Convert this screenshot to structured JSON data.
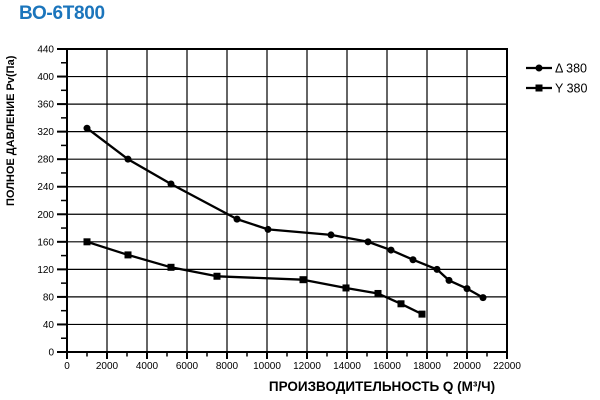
{
  "page_title": "ВО-6Т800",
  "colors": {
    "title": "#1b75bc",
    "chart_ink": "#000000",
    "background": "#ffffff"
  },
  "chart_data": {
    "type": "line",
    "title": "",
    "xlabel": "ПРОИЗВОДИТЕЛЬНОСТЬ Q (М³/Ч)",
    "ylabel": "ПОЛНОЕ ДАВЛЕНИЕ Pv(Па)",
    "xlim": [
      0,
      22000
    ],
    "ylim": [
      0,
      440
    ],
    "x_tick_step": 2000,
    "x_minor_step": 1000,
    "y_tick_step": 40,
    "y_minor_step": 20,
    "grid": true,
    "legend_position": "top-right",
    "series": [
      {
        "name": "Δ 380",
        "marker": "circle",
        "points": [
          [
            1000,
            325
          ],
          [
            3050,
            280
          ],
          [
            5200,
            244
          ],
          [
            8500,
            193
          ],
          [
            10050,
            178
          ],
          [
            13200,
            170
          ],
          [
            15050,
            160
          ],
          [
            16200,
            148
          ],
          [
            17300,
            134
          ],
          [
            18500,
            120
          ],
          [
            19100,
            104
          ],
          [
            20000,
            92
          ],
          [
            20800,
            79
          ]
        ]
      },
      {
        "name": "Y 380",
        "marker": "square",
        "points": [
          [
            1000,
            160
          ],
          [
            3050,
            141
          ],
          [
            5200,
            123
          ],
          [
            7500,
            110
          ],
          [
            11800,
            105
          ],
          [
            13950,
            93
          ],
          [
            15550,
            85
          ],
          [
            16700,
            70
          ],
          [
            17750,
            55
          ]
        ]
      }
    ]
  }
}
